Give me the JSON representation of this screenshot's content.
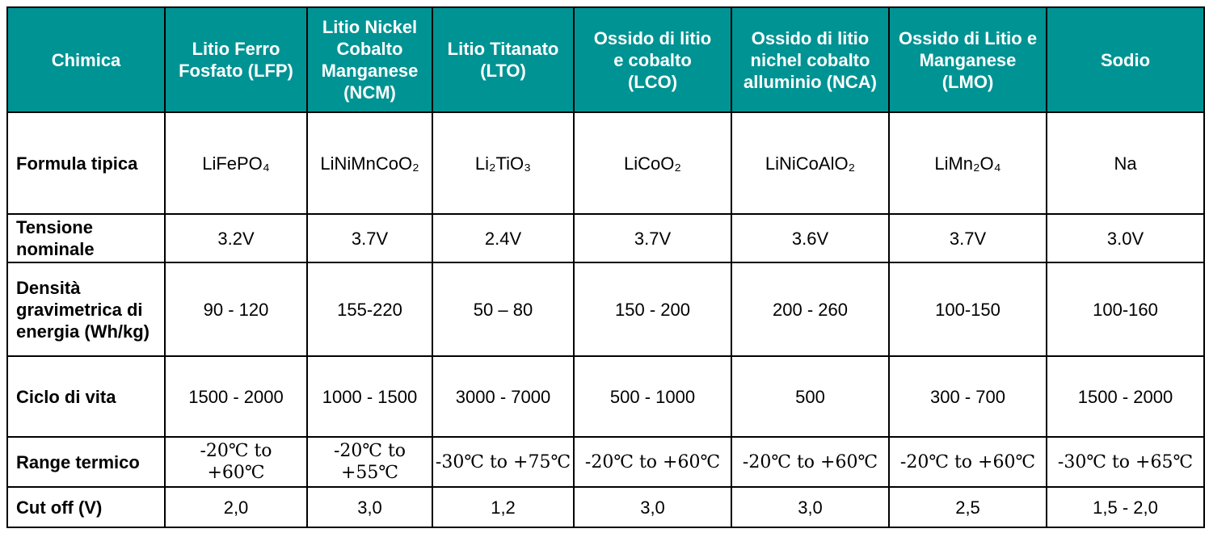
{
  "header": {
    "corner": "Chimica",
    "columns": [
      "Litio Ferro Fosfato (LFP)",
      "Litio Nickel Cobalto Manganese (NCM)",
      "Litio Titanato (LTO)",
      "Ossido di litio e cobalto (LCO)",
      "Ossido di litio nichel cobalto alluminio (NCA)",
      "Ossido di Litio e Manganese (LMO)",
      "Sodio"
    ]
  },
  "rows": [
    {
      "label": "Formula tipica",
      "cells": [
        "LiFePO₄",
        "LiNiMnCoO₂",
        "Li₂TiO₃",
        "LiCoO₂",
        "LiNiCoAlO₂",
        "LiMn₂O₄",
        "Na"
      ]
    },
    {
      "label": "Tensione nominale",
      "cells": [
        "3.2V",
        "3.7V",
        "2.4V",
        "3.7V",
        "3.6V",
        "3.7V",
        "3.0V"
      ]
    },
    {
      "label": "Densità gravimetrica di energia (Wh/kg)",
      "cells": [
        "90 - 120",
        "155-220",
        "50 – 80",
        "150 - 200",
        "200 - 260",
        "100-150",
        "100-160"
      ]
    },
    {
      "label": "Ciclo di vita",
      "cells": [
        "1500 - 2000",
        "1000 - 1500",
        "3000 - 7000",
        "500 - 1000",
        "500",
        "300 - 700",
        "1500 - 2000"
      ]
    },
    {
      "label": "Range termico",
      "cells": [
        "-20℃ to +60℃",
        "-20℃ to +55℃",
        "-30℃ to +75℃",
        "-20℃ to +60℃",
        "-20℃ to +60℃",
        "-20℃ to +60℃",
        "-30℃ to +65℃"
      ]
    },
    {
      "label": "Cut off (V)",
      "cells": [
        "2,0",
        "3,0",
        "1,2",
        "3,0",
        "3,0",
        "2,5",
        "1,5 - 2,0"
      ]
    }
  ],
  "colors": {
    "header_background": "#009393",
    "header_text": "#ffffff",
    "border": "#000000"
  }
}
